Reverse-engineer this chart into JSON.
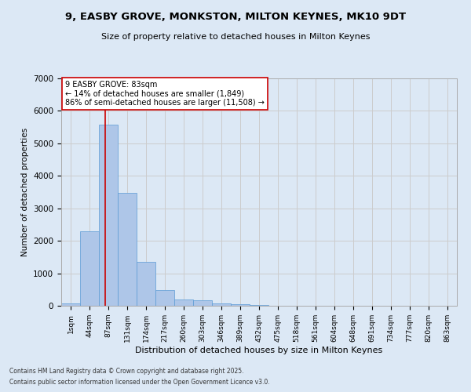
{
  "title": "9, EASBY GROVE, MONKSTON, MILTON KEYNES, MK10 9DT",
  "subtitle": "Size of property relative to detached houses in Milton Keynes",
  "xlabel": "Distribution of detached houses by size in Milton Keynes",
  "ylabel": "Number of detached properties",
  "categories": [
    "1sqm",
    "44sqm",
    "87sqm",
    "131sqm",
    "174sqm",
    "217sqm",
    "260sqm",
    "303sqm",
    "346sqm",
    "389sqm",
    "432sqm",
    "475sqm",
    "518sqm",
    "561sqm",
    "604sqm",
    "648sqm",
    "691sqm",
    "734sqm",
    "777sqm",
    "820sqm",
    "863sqm"
  ],
  "bar_values": [
    70,
    2300,
    5580,
    3470,
    1340,
    490,
    185,
    165,
    70,
    40,
    20,
    10,
    5,
    3,
    2,
    1,
    1,
    0,
    0,
    0,
    0
  ],
  "bar_color": "#aec6e8",
  "bar_edge_color": "#5b9bd5",
  "property_line_x": 1.85,
  "annotation_line0": "9 EASBY GROVE: 83sqm",
  "annotation_line1": "← 14% of detached houses are smaller (1,849)",
  "annotation_line2": "86% of semi-detached houses are larger (11,508) →",
  "annotation_box_color": "#ffffff",
  "annotation_box_edge": "#cc0000",
  "vline_color": "#cc0000",
  "ylim": [
    0,
    7000
  ],
  "yticks": [
    0,
    1000,
    2000,
    3000,
    4000,
    5000,
    6000,
    7000
  ],
  "grid_color": "#cccccc",
  "bg_color": "#dce8f5",
  "footer1": "Contains HM Land Registry data © Crown copyright and database right 2025.",
  "footer2": "Contains public sector information licensed under the Open Government Licence v3.0."
}
